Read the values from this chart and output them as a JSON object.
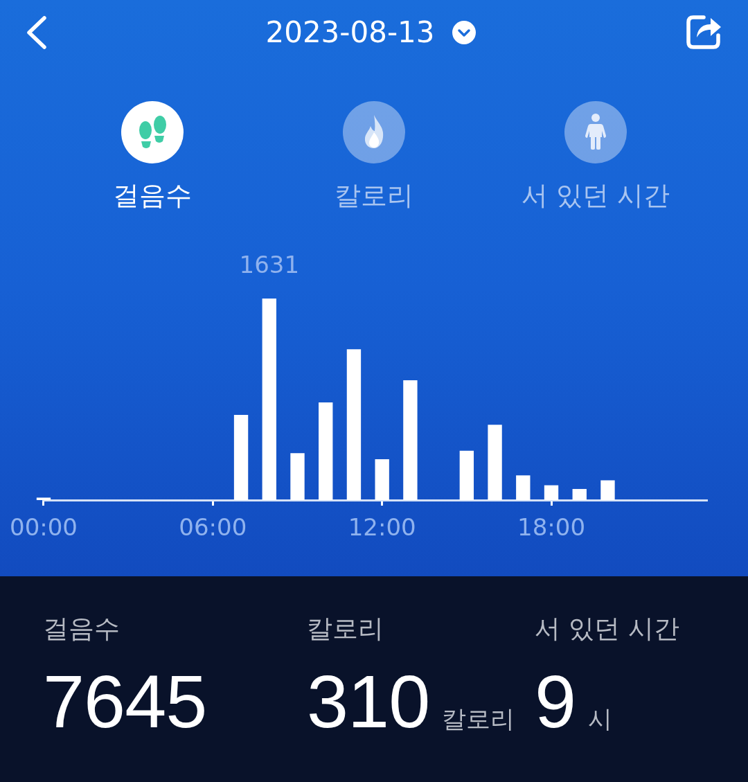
{
  "chart_data": [
    {
      "type": "bar",
      "title": "2023-08-13",
      "annotations": [
        "걸음수",
        "칼로리",
        "서 있던 시간"
      ],
      "x": [
        0,
        7,
        8,
        9,
        10,
        11,
        12,
        13,
        15,
        16,
        17,
        18,
        19,
        20
      ],
      "values": [
        20,
        690,
        1631,
        380,
        790,
        1220,
        330,
        970,
        400,
        610,
        200,
        120,
        90,
        160
      ],
      "value_labels": [
        null,
        null,
        "1631",
        null,
        null,
        null,
        null,
        null,
        null,
        null,
        null,
        null,
        null,
        null
      ],
      "color": "#ffffff",
      "xlim": [
        0,
        23.5
      ],
      "xticks": [
        {
          "value": 0,
          "label": "00:00"
        },
        {
          "value": 6,
          "label": "06:00"
        },
        {
          "value": 12,
          "label": "12:00"
        },
        {
          "value": 18,
          "label": "18:00"
        }
      ],
      "tick_labels": "x"
    },
    {
      "type": "other",
      "title": "걸음수",
      "values": [
        7645
      ],
      "data_labels": true
    },
    {
      "type": "other",
      "title": "칼로리",
      "values": [
        310
      ],
      "data_labels": true,
      "annotations": [
        "칼로리"
      ]
    },
    {
      "type": "other",
      "title": "서 있던 시간",
      "values": [
        9
      ],
      "data_labels": true,
      "annotations": [
        "시"
      ]
    }
  ]
}
